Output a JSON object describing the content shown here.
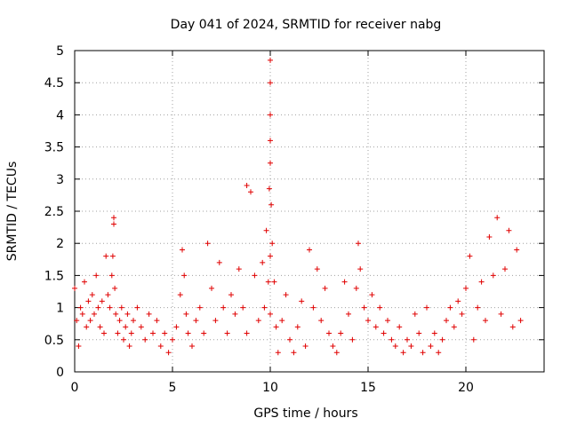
{
  "chart_data": {
    "type": "scatter",
    "title": "Day 041 of 2024, SRMTID for receiver nabg",
    "xlabel": "GPS time / hours",
    "ylabel": "SRMTID / TECUs",
    "xlim": [
      0,
      24
    ],
    "ylim": [
      0,
      5
    ],
    "xticks": [
      0,
      5,
      10,
      15,
      20
    ],
    "xtick_labels": [
      "0",
      "5",
      "10",
      "15",
      "20"
    ],
    "yticks": [
      0,
      0.5,
      1,
      1.5,
      2,
      2.5,
      3,
      3.5,
      4,
      4.5,
      5
    ],
    "ytick_labels": [
      "0",
      "0.5",
      "1",
      "1.5",
      "2",
      "2.5",
      "3",
      "3.5",
      "4",
      "4.5",
      "5"
    ],
    "grid": true,
    "marker": "+",
    "color": "#e00000",
    "series": [
      {
        "name": "nabg",
        "x": [
          0.0,
          0.1,
          0.2,
          0.3,
          0.4,
          0.5,
          0.6,
          0.7,
          0.8,
          0.9,
          1.0,
          1.1,
          1.2,
          1.3,
          1.4,
          1.5,
          1.6,
          1.7,
          1.8,
          1.9,
          1.95,
          2.0,
          2.0,
          2.05,
          2.1,
          2.2,
          2.3,
          2.4,
          2.5,
          2.6,
          2.7,
          2.8,
          2.9,
          3.0,
          3.2,
          3.4,
          3.6,
          3.8,
          4.0,
          4.2,
          4.4,
          4.6,
          4.8,
          5.0,
          5.2,
          5.4,
          5.5,
          5.6,
          5.7,
          5.8,
          6.0,
          6.2,
          6.4,
          6.6,
          6.8,
          7.0,
          7.2,
          7.4,
          7.6,
          7.8,
          8.0,
          8.2,
          8.4,
          8.6,
          8.8,
          8.8,
          9.0,
          9.2,
          9.4,
          9.6,
          9.7,
          9.8,
          9.9,
          9.95,
          10.0,
          10.0,
          10.0,
          10.0,
          10.0,
          10.0,
          10.0,
          10.05,
          10.1,
          10.2,
          10.3,
          10.4,
          10.6,
          10.8,
          11.0,
          11.2,
          11.4,
          11.6,
          11.8,
          12.0,
          12.2,
          12.4,
          12.6,
          12.8,
          13.0,
          13.2,
          13.4,
          13.6,
          13.8,
          14.0,
          14.2,
          14.4,
          14.5,
          14.6,
          14.8,
          15.0,
          15.2,
          15.4,
          15.6,
          15.8,
          16.0,
          16.2,
          16.4,
          16.6,
          16.8,
          17.0,
          17.2,
          17.4,
          17.6,
          17.8,
          18.0,
          18.2,
          18.4,
          18.6,
          18.8,
          19.0,
          19.2,
          19.4,
          19.6,
          19.8,
          20.0,
          20.2,
          20.4,
          20.6,
          20.8,
          21.0,
          21.2,
          21.4,
          21.6,
          21.8,
          22.0,
          22.2,
          22.4,
          22.6,
          22.8
        ],
        "y": [
          1.3,
          0.8,
          0.4,
          1.0,
          0.9,
          1.4,
          0.7,
          1.1,
          0.8,
          1.2,
          0.9,
          1.5,
          1.0,
          0.7,
          1.1,
          0.6,
          1.8,
          1.2,
          1.0,
          1.5,
          1.8,
          2.4,
          2.3,
          1.3,
          0.9,
          0.6,
          0.8,
          1.0,
          0.5,
          0.7,
          0.9,
          0.4,
          0.6,
          0.8,
          1.0,
          0.7,
          0.5,
          0.9,
          0.6,
          0.8,
          0.4,
          0.6,
          0.3,
          0.5,
          0.7,
          1.2,
          1.9,
          1.5,
          0.9,
          0.6,
          0.4,
          0.8,
          1.0,
          0.6,
          2.0,
          1.3,
          0.8,
          1.7,
          1.0,
          0.6,
          1.2,
          0.9,
          1.6,
          1.0,
          2.9,
          0.6,
          2.8,
          1.5,
          0.8,
          1.7,
          1.0,
          2.2,
          1.4,
          2.85,
          3.25,
          3.6,
          4.0,
          4.5,
          4.85,
          1.8,
          0.9,
          2.6,
          2.0,
          1.4,
          0.7,
          0.3,
          0.8,
          1.2,
          0.5,
          0.3,
          0.7,
          1.1,
          0.4,
          1.9,
          1.0,
          1.6,
          0.8,
          1.3,
          0.6,
          0.4,
          0.3,
          0.6,
          1.4,
          0.9,
          0.5,
          1.3,
          2.0,
          1.6,
          1.0,
          0.8,
          1.2,
          0.7,
          1.0,
          0.6,
          0.8,
          0.5,
          0.4,
          0.7,
          0.3,
          0.5,
          0.4,
          0.9,
          0.6,
          0.3,
          1.0,
          0.4,
          0.6,
          0.3,
          0.5,
          0.8,
          1.0,
          0.7,
          1.1,
          0.9,
          1.3,
          1.8,
          0.5,
          1.0,
          1.4,
          0.8,
          2.1,
          1.5,
          2.4,
          0.9,
          1.6,
          2.2,
          0.7,
          1.9,
          0.8
        ]
      }
    ]
  }
}
